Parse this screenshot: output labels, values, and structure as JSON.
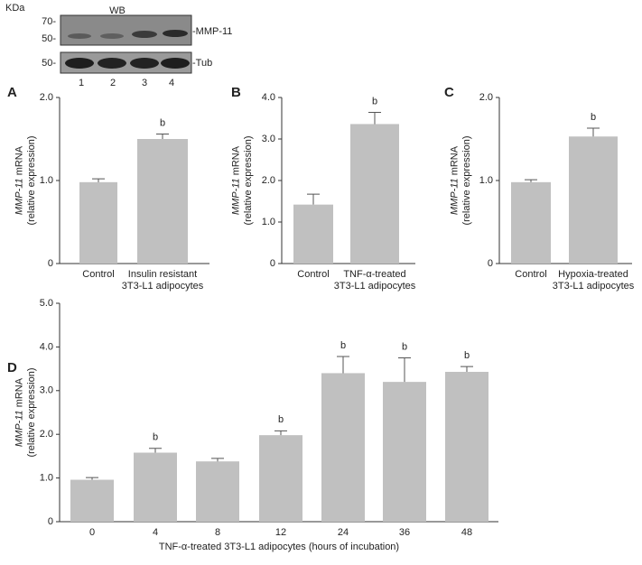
{
  "blot": {
    "unit": "KDa",
    "method": "WB",
    "markers_top": [
      "70-",
      "50-"
    ],
    "marker_bottom": "50-",
    "band_top": "-MMP-11",
    "band_bottom": "-Tub",
    "lanes": [
      "1",
      "2",
      "3",
      "4"
    ]
  },
  "chart_data": [
    {
      "type": "bar",
      "panel": "A",
      "ylabel": [
        "MMP-11",
        "mRNA",
        "(relative expression)"
      ],
      "categories": [
        [
          "Control"
        ],
        [
          "Insulin resistant",
          "3T3-L1 adipocytes"
        ]
      ],
      "values": [
        0.98,
        1.5
      ],
      "errors": [
        0.04,
        0.06
      ],
      "markers": [
        null,
        "b"
      ],
      "color": "#c0c0c0",
      "ylim": [
        0,
        2
      ],
      "yticks": [
        0,
        {
          "value": 1,
          "label": "1.0"
        },
        {
          "value": 2,
          "label": "2.0"
        }
      ]
    },
    {
      "type": "bar",
      "panel": "B",
      "ylabel": [
        "MMP-11",
        "mRNA",
        "(relative expression)"
      ],
      "categories": [
        [
          "Control"
        ],
        [
          "TNF-α-treated",
          "3T3-L1 adipocytes"
        ]
      ],
      "values": [
        1.42,
        3.36
      ],
      "errors": [
        0.25,
        0.28
      ],
      "markers": [
        null,
        "b"
      ],
      "color": "#c0c0c0",
      "ylim": [
        0,
        4
      ],
      "yticks": [
        0,
        {
          "value": 1,
          "label": "1.0"
        },
        {
          "value": 2,
          "label": "2.0"
        },
        {
          "value": 3,
          "label": "3.0"
        },
        {
          "value": 4,
          "label": "4.0"
        }
      ]
    },
    {
      "type": "bar",
      "panel": "C",
      "ylabel": [
        "MMP-11",
        "mRNA",
        "(relative expression)"
      ],
      "categories": [
        [
          "Control"
        ],
        [
          "Hypoxia-treated",
          "3T3-L1 adipocytes"
        ]
      ],
      "values": [
        0.98,
        1.53
      ],
      "errors": [
        0.03,
        0.1
      ],
      "markers": [
        null,
        "b"
      ],
      "color": "#c0c0c0",
      "ylim": [
        0,
        2
      ],
      "yticks": [
        0,
        {
          "value": 1,
          "label": "1.0"
        },
        {
          "value": 2,
          "label": "2.0"
        }
      ]
    },
    {
      "type": "bar",
      "panel": "D",
      "ylabel": [
        "MMP-11",
        "mRNA",
        "(relative expression)"
      ],
      "xlabel": "TNF-α-treated 3T3-L1 adipocytes (hours of incubation)",
      "categories": [
        [
          "0"
        ],
        [
          "4"
        ],
        [
          "8"
        ],
        [
          "12"
        ],
        [
          "24"
        ],
        [
          "36"
        ],
        [
          "48"
        ]
      ],
      "values": [
        0.96,
        1.58,
        1.38,
        1.98,
        3.4,
        3.2,
        3.43
      ],
      "errors": [
        0.05,
        0.1,
        0.07,
        0.1,
        0.38,
        0.55,
        0.12
      ],
      "markers": [
        null,
        "b",
        null,
        "b",
        "b",
        "b",
        "b"
      ],
      "color": "#c0c0c0",
      "ylim": [
        0,
        5
      ],
      "yticks": [
        0,
        {
          "value": 1,
          "label": "1.0"
        },
        {
          "value": 2,
          "label": "2.0"
        },
        {
          "value": 3,
          "label": "3.0"
        },
        {
          "value": 4,
          "label": "4.0"
        },
        {
          "value": 5,
          "label": "5.0"
        }
      ]
    }
  ]
}
